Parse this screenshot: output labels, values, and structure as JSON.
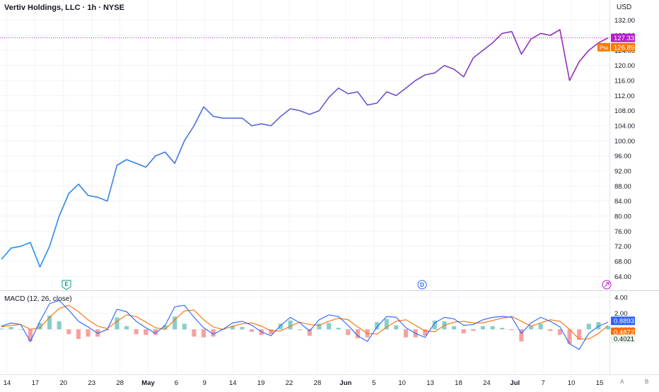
{
  "title": "Vertiv Holdings, LLC · 1h · NYSE",
  "currency": "USD",
  "macd_title": "MACD (12, 26, close)",
  "buttons": {
    "a": "A",
    "b": "B"
  },
  "colors": {
    "line_start": "#2196f3",
    "line_end": "#9c27b0",
    "last_price": "#b21ecb",
    "premarket": "#f57c00",
    "macd": "#2962ff",
    "signal": "#ff6d00",
    "hist_up": "#26a69a",
    "hist_down": "#ef5350"
  },
  "badges": {
    "last_price": "127.33",
    "pre_label": "Pre",
    "pre_price": "126.89",
    "macd_value": "0.8893",
    "signal_value": "0.4872",
    "hist_value": "0.4021"
  },
  "event_markers": [
    {
      "label": "E",
      "date": "Apr 23",
      "type": "earnings"
    },
    {
      "label": "D",
      "date": "Jun 14",
      "type": "dividend"
    },
    {
      "label": "",
      "date": "Jul 16",
      "type": "split-icon"
    }
  ],
  "chart_data": [
    {
      "type": "line",
      "title": "Vertiv Holdings, LLC · 1h · NYSE",
      "y_unit": "USD",
      "ylim": [
        62,
        134
      ],
      "y_ticks": [
        "64.00",
        "68.00",
        "72.00",
        "76.00",
        "80.00",
        "84.00",
        "88.00",
        "92.00",
        "96.00",
        "100.00",
        "104.00",
        "108.00",
        "112.00",
        "116.00",
        "120.00",
        "124.00",
        "128.00",
        "132.00"
      ],
      "x_ticks": [
        "14",
        "17",
        "20",
        "23",
        "28",
        "May",
        "6",
        "9",
        "14",
        "19",
        "22",
        "28",
        "Jun",
        "5",
        "10",
        "13",
        "18",
        "24",
        "Jul",
        "7",
        "10",
        "15"
      ],
      "x": [
        "Apr 12",
        "Apr 15",
        "Apr 17",
        "Apr 18",
        "Apr 19",
        "Apr 22",
        "Apr 23",
        "Apr 24",
        "Apr 25",
        "Apr 26",
        "Apr 29",
        "Apr 30",
        "May 1",
        "May 2",
        "May 3",
        "May 6",
        "May 7",
        "May 8",
        "May 9",
        "May 10",
        "May 13",
        "May 14",
        "May 15",
        "May 16",
        "May 17",
        "May 20",
        "May 21",
        "May 22",
        "May 23",
        "May 24",
        "May 28",
        "May 29",
        "May 30",
        "May 31",
        "Jun 3",
        "Jun 4",
        "Jun 5",
        "Jun 6",
        "Jun 7",
        "Jun 10",
        "Jun 11",
        "Jun 12",
        "Jun 13",
        "Jun 14",
        "Jun 17",
        "Jun 18",
        "Jun 20",
        "Jun 21",
        "Jun 24",
        "Jun 25",
        "Jun 26",
        "Jun 27",
        "Jun 28",
        "Jul 1",
        "Jul 2",
        "Jul 3",
        "Jul 5",
        "Jul 8",
        "Jul 9",
        "Jul 10",
        "Jul 11",
        "Jul 12",
        "Jul 15",
        "Jul 16"
      ],
      "series": [
        {
          "values": [
            68.5,
            71.5,
            72.0,
            73.0,
            66.5,
            72.0,
            80.0,
            86.0,
            88.5,
            85.5,
            85.0,
            84.0,
            93.5,
            95.0,
            94.0,
            93.0,
            96.0,
            97.0,
            94.0,
            100.0,
            104.0,
            109.0,
            106.5,
            106.0,
            106.0,
            106.0,
            104.0,
            104.5,
            104.0,
            106.5,
            108.5,
            108.0,
            107.0,
            108.0,
            111.5,
            114.0,
            112.5,
            113.0,
            109.5,
            110.0,
            113.0,
            112.0,
            114.0,
            116.0,
            117.5,
            118.0,
            120.0,
            119.0,
            117.0,
            122.0,
            124.0,
            126.0,
            128.5,
            129.0,
            123.0,
            127.0,
            128.5,
            128.0,
            129.5,
            116.0,
            121.0,
            124.0,
            126.0,
            127.33
          ]
        }
      ],
      "last_price": 127.33,
      "premarket_price": 126.89
    },
    {
      "type": "line",
      "title": "MACD (12, 26, close)",
      "ylim": [
        -5.6,
        4.6
      ],
      "y_ticks": [
        "4.00",
        "2.00",
        "0.0000"
      ],
      "series": [
        {
          "name": "MACD",
          "values": [
            0.4,
            0.8,
            0.6,
            -1.5,
            1.0,
            3.2,
            3.6,
            2.4,
            1.0,
            0.3,
            -0.5,
            0.0,
            2.5,
            2.2,
            1.0,
            0.2,
            -0.5,
            0.5,
            2.8,
            3.0,
            1.5,
            0.2,
            -0.6,
            0.0,
            0.8,
            1.0,
            0.5,
            -0.3,
            -0.8,
            0.5,
            1.5,
            0.8,
            -0.2,
            1.2,
            1.8,
            1.6,
            0.5,
            -0.8,
            -1.5,
            0.3,
            1.6,
            1.5,
            0.2,
            -0.5,
            -1.0,
            0.8,
            1.5,
            1.3,
            0.5,
            0.6,
            1.2,
            1.5,
            1.6,
            1.5,
            -0.5,
            0.8,
            1.5,
            1.0,
            0.3,
            -1.8,
            -2.5,
            -0.5,
            0.4,
            0.8893
          ]
        },
        {
          "name": "Signal",
          "values": [
            0.3,
            0.5,
            0.6,
            0.0,
            0.2,
            1.5,
            2.6,
            3.0,
            2.2,
            1.2,
            0.4,
            0.1,
            1.0,
            1.8,
            1.6,
            0.9,
            0.2,
            0.0,
            1.2,
            2.3,
            2.4,
            1.2,
            0.3,
            0.0,
            0.4,
            0.7,
            0.8,
            0.4,
            -0.2,
            -0.2,
            0.4,
            0.9,
            0.6,
            0.5,
            1.0,
            1.4,
            1.2,
            0.3,
            -0.5,
            -0.6,
            0.3,
            1.0,
            1.2,
            0.5,
            -0.2,
            -0.3,
            0.5,
            0.9,
            1.0,
            0.8,
            0.8,
            1.1,
            1.4,
            1.6,
            1.0,
            0.4,
            0.8,
            1.2,
            1.0,
            0.0,
            -1.2,
            -1.2,
            -0.5,
            0.4872
          ]
        },
        {
          "name": "Histogram",
          "values": [
            0.1,
            0.3,
            0.0,
            -1.5,
            0.8,
            1.7,
            1.0,
            -0.6,
            -1.2,
            -0.9,
            -0.9,
            -0.1,
            1.5,
            0.4,
            -0.6,
            -0.7,
            -0.7,
            0.5,
            1.6,
            0.7,
            -0.9,
            -1.0,
            -0.9,
            0.0,
            0.4,
            0.3,
            -0.3,
            -0.7,
            -0.6,
            0.7,
            1.1,
            -0.1,
            -0.8,
            0.7,
            0.8,
            0.2,
            -0.7,
            -1.1,
            -1.0,
            0.9,
            1.3,
            0.5,
            -1.0,
            -1.0,
            -0.8,
            1.1,
            1.0,
            0.4,
            -0.5,
            -0.2,
            0.4,
            0.4,
            0.2,
            -0.1,
            -1.5,
            0.4,
            0.7,
            -0.2,
            -0.7,
            -1.8,
            -1.3,
            0.7,
            0.9,
            0.4021
          ]
        }
      ]
    }
  ]
}
